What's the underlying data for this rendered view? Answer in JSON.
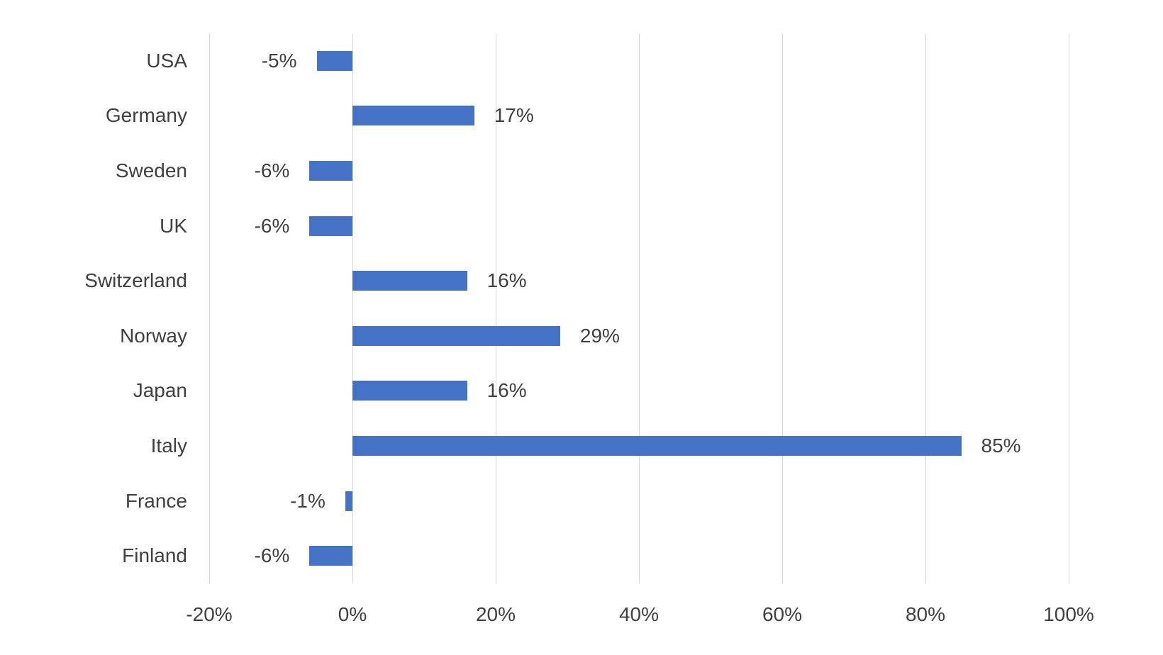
{
  "chart_data": {
    "type": "bar",
    "orientation": "horizontal",
    "title": "",
    "xlabel": "",
    "ylabel": "",
    "categories": [
      "USA",
      "Germany",
      "Sweden",
      "UK",
      "Switzerland",
      "Norway",
      "Japan",
      "Italy",
      "France",
      "Finland"
    ],
    "values": [
      -5,
      17,
      -6,
      -6,
      16,
      29,
      16,
      85,
      -1,
      -6
    ],
    "data_labels": [
      "-5%",
      "17%",
      "-6%",
      "-6%",
      "16%",
      "29%",
      "16%",
      "85%",
      "-1%",
      "-6%"
    ],
    "x_ticks": [
      -20,
      0,
      20,
      40,
      60,
      80,
      100
    ],
    "x_tick_labels": [
      "-20%",
      "0%",
      "20%",
      "40%",
      "60%",
      "80%",
      "100%"
    ],
    "xlim": [
      -20,
      100
    ],
    "grid": true,
    "legend": false,
    "colors": {
      "bar": "#4472c4",
      "gridline": "#d6d6d6",
      "text": "#404040",
      "background": "#ffffff"
    }
  }
}
